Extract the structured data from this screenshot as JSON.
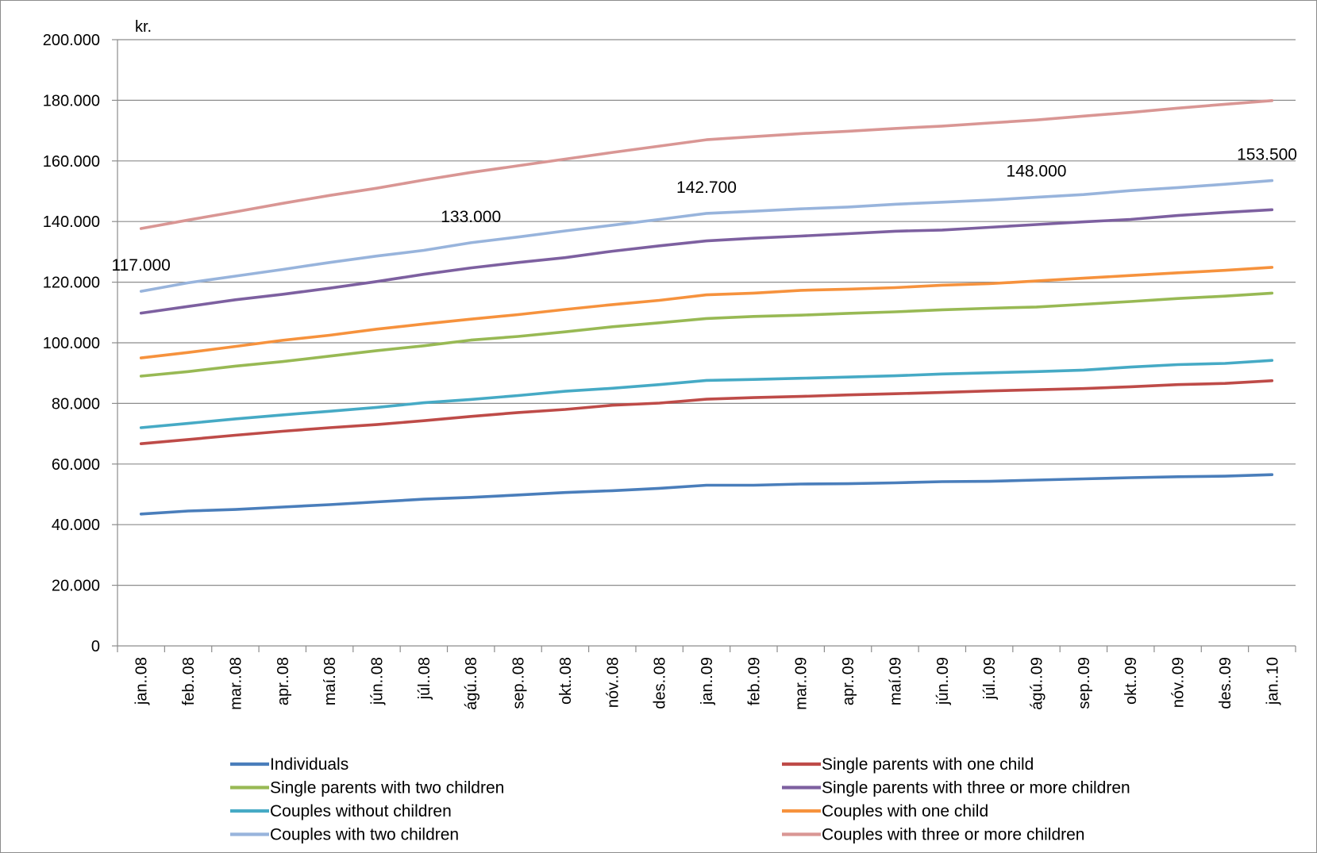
{
  "chart_data": {
    "type": "line",
    "unit_label": "kr.",
    "title": "",
    "xlabel": "",
    "ylabel": "",
    "ylim": [
      0,
      200000
    ],
    "y_ticks": [
      0,
      20000,
      40000,
      60000,
      80000,
      100000,
      120000,
      140000,
      160000,
      180000,
      200000
    ],
    "y_tick_labels": [
      "0",
      "20.000",
      "40.000",
      "60.000",
      "80.000",
      "100.000",
      "120.000",
      "140.000",
      "160.000",
      "180.000",
      "200.000"
    ],
    "grid": "horizontal",
    "legend_position": "bottom",
    "categories": [
      "jan..08",
      "feb..08",
      "mar..08",
      "apr..08",
      "maí.08",
      "jún..08",
      "júl..08",
      "ágú..08",
      "sep..08",
      "okt..08",
      "nóv..08",
      "des..08",
      "jan..09",
      "feb..09",
      "mar..09",
      "apr..09",
      "maí.09",
      "jún..09",
      "júl..09",
      "ágú..09",
      "sep..09",
      "okt..09",
      "nóv..09",
      "des..09",
      "jan..10"
    ],
    "series": [
      {
        "name": "Individuals",
        "color": "#4a7ebb",
        "values": [
          43500,
          44500,
          45000,
          45800,
          46600,
          47500,
          48400,
          49000,
          49800,
          50600,
          51200,
          52000,
          53000,
          53000,
          53400,
          53500,
          53800,
          54200,
          54300,
          54700,
          55100,
          55500,
          55800,
          56000,
          56500
        ]
      },
      {
        "name": "Single parents with one child",
        "color": "#be4b48",
        "values": [
          66700,
          68100,
          69500,
          70800,
          72000,
          73000,
          74300,
          75700,
          77000,
          78000,
          79400,
          80100,
          81400,
          81900,
          82300,
          82800,
          83200,
          83600,
          84100,
          84500,
          84900,
          85500,
          86200,
          86600,
          87500
        ]
      },
      {
        "name": "Single parents with two children",
        "color": "#98b954",
        "values": [
          89000,
          90500,
          92300,
          93800,
          95600,
          97400,
          99000,
          100900,
          102100,
          103600,
          105300,
          106600,
          108000,
          108700,
          109100,
          109700,
          110200,
          110900,
          111400,
          111800,
          112700,
          113600,
          114600,
          115400,
          116400
        ]
      },
      {
        "name": "Single parents with three or more children",
        "color": "#7d60a0",
        "values": [
          109800,
          112000,
          114200,
          116000,
          118000,
          120200,
          122600,
          124700,
          126500,
          128100,
          130200,
          132000,
          133600,
          134500,
          135200,
          136000,
          136800,
          137200,
          138100,
          139000,
          139900,
          140700,
          142000,
          143000,
          143900
        ]
      },
      {
        "name": "Couples without children",
        "color": "#46aac5",
        "values": [
          72000,
          73400,
          74900,
          76200,
          77400,
          78700,
          80200,
          81300,
          82600,
          84000,
          85000,
          86200,
          87600,
          87900,
          88300,
          88700,
          89100,
          89700,
          90100,
          90500,
          91000,
          92000,
          92800,
          93200,
          94200
        ]
      },
      {
        "name": "Couples with one child",
        "color": "#f6923d",
        "values": [
          95000,
          96800,
          98800,
          100800,
          102500,
          104500,
          106200,
          107800,
          109300,
          111000,
          112600,
          114000,
          115800,
          116400,
          117300,
          117700,
          118200,
          119000,
          119500,
          120400,
          121300,
          122200,
          123100,
          123900,
          124900
        ]
      },
      {
        "name": "Couples with two children",
        "color": "#98b4dc",
        "values": [
          117000,
          119800,
          122000,
          124200,
          126500,
          128600,
          130500,
          133000,
          134900,
          136900,
          138800,
          140700,
          142700,
          143400,
          144200,
          144800,
          145700,
          146400,
          147100,
          148000,
          148900,
          150200,
          151200,
          152300,
          153500
        ]
      },
      {
        "name": "Couples with three or more children",
        "color": "#d99694",
        "values": [
          137700,
          140500,
          143200,
          146000,
          148600,
          151000,
          153700,
          156200,
          158400,
          160600,
          162800,
          164900,
          167000,
          168000,
          169000,
          169800,
          170700,
          171500,
          172500,
          173500,
          174800,
          176000,
          177400,
          178700,
          179900
        ]
      }
    ],
    "annotations": [
      {
        "category": "jan..08",
        "value": 117000,
        "text": "117.000"
      },
      {
        "category": "ágú..08",
        "value": 133000,
        "text": "133.000"
      },
      {
        "category": "jan..09",
        "value": 142700,
        "text": "142.700"
      },
      {
        "category": "ágú..09",
        "value": 148000,
        "text": "148.000"
      },
      {
        "category": "jan..10",
        "value": 153500,
        "text": "153.500"
      }
    ]
  }
}
